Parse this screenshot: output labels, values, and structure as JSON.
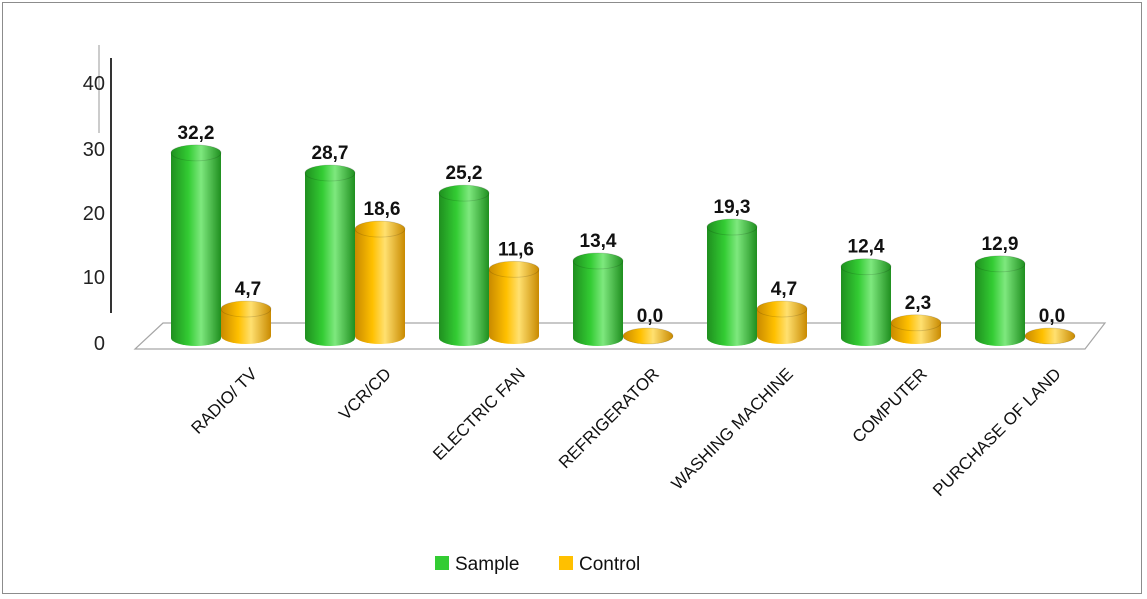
{
  "chart_data": {
    "type": "bar",
    "categories": [
      "RADIO/ TV",
      "VCR/CD",
      "ELECTRIC FAN",
      "REFRIGERATOR",
      "WASHING MACHINE",
      "COMPUTER",
      "PURCHASE OF LAND"
    ],
    "series": [
      {
        "name": "Sample",
        "values": [
          32.2,
          28.7,
          25.2,
          13.4,
          19.3,
          12.4,
          12.9
        ],
        "labels": [
          "32,2",
          "28,7",
          "25,2",
          "13,4",
          "19,3",
          "12,4",
          "12,9"
        ]
      },
      {
        "name": "Control",
        "values": [
          4.7,
          18.6,
          11.6,
          0.0,
          4.7,
          2.3,
          0.0
        ],
        "labels": [
          "4,7",
          "18,6",
          "11,6",
          "0,0",
          "4,7",
          "2,3",
          "0,0"
        ]
      }
    ],
    "yticks": [
      "0",
      "10",
      "20",
      "30",
      "40"
    ],
    "ylim": [
      0,
      40
    ],
    "legend_position": "bottom",
    "colors": {
      "sample": "#33cc33",
      "sample_dark": "#1f8f1f",
      "sample_light": "#7ee87e",
      "control": "#ffc000",
      "control_dark": "#c98a00",
      "control_light": "#ffe070"
    },
    "title": "",
    "xlabel": "",
    "ylabel": ""
  }
}
